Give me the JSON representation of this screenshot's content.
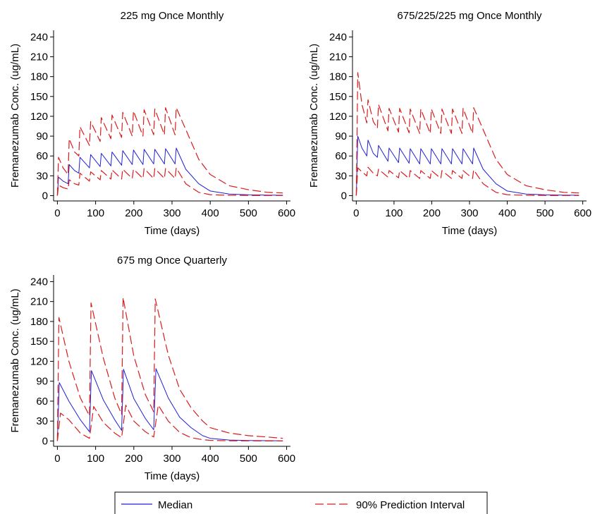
{
  "chart_data": [
    {
      "type": "line",
      "title": "225 mg Once Monthly",
      "xlabel": "Time (days)",
      "ylabel": "Fremanezumab Conc. (ug/mL)",
      "xlim": [
        -10,
        610
      ],
      "ylim": [
        -8,
        250
      ],
      "xticks": [
        0,
        100,
        200,
        300,
        400,
        500,
        600
      ],
      "yticks": [
        0,
        30,
        60,
        90,
        120,
        150,
        180,
        210,
        240
      ],
      "regimen": {
        "loading_dose": 225,
        "maintenance_dose": 225,
        "interval_days": 28,
        "doses": 12
      },
      "series": [
        {
          "name": "Median",
          "color": "#1f1fd6",
          "style": "solid",
          "x": [
            0,
            3,
            15,
            28,
            31,
            45,
            56,
            59,
            84,
            87,
            112,
            115,
            140,
            143,
            168,
            171,
            196,
            199,
            224,
            227,
            252,
            255,
            280,
            283,
            308,
            311,
            336,
            370,
            400,
            450,
            500,
            550,
            590
          ],
          "y": [
            0,
            28,
            22,
            18,
            47,
            38,
            34,
            58,
            42,
            62,
            44,
            64,
            45,
            66,
            46,
            68,
            47,
            69,
            47,
            70,
            48,
            70,
            48,
            71,
            48,
            72,
            40,
            18,
            7,
            2.5,
            1.3,
            0.8,
            0.6
          ]
        },
        {
          "name": "90% Prediction Interval",
          "color": "#d91c1c",
          "style": "dashed",
          "x": [
            0,
            3,
            15,
            28,
            31,
            45,
            56,
            59,
            84,
            87,
            112,
            115,
            140,
            143,
            168,
            171,
            196,
            199,
            224,
            227,
            252,
            255,
            280,
            283,
            308,
            311,
            336,
            370,
            400,
            450,
            500,
            550,
            590
          ],
          "y": [
            0,
            58,
            42,
            32,
            86,
            66,
            60,
            104,
            76,
            112,
            82,
            118,
            86,
            122,
            88,
            126,
            90,
            128,
            90,
            130,
            92,
            131,
            92,
            133,
            92,
            133,
            100,
            55,
            32,
            15,
            9,
            5,
            4
          ]
        },
        {
          "name": "90% Prediction Interval lower",
          "color": "#d91c1c",
          "style": "dashed",
          "x": [
            0,
            3,
            15,
            28,
            31,
            45,
            56,
            59,
            84,
            87,
            112,
            115,
            140,
            143,
            168,
            171,
            196,
            199,
            224,
            227,
            252,
            255,
            280,
            283,
            308,
            311,
            336,
            370,
            400,
            450,
            500,
            550,
            590
          ],
          "y": [
            0,
            16,
            12,
            10,
            24,
            18,
            16,
            34,
            22,
            36,
            24,
            38,
            25,
            39,
            25,
            40,
            26,
            40,
            26,
            41,
            26,
            41,
            26,
            41,
            26,
            42,
            18,
            5,
            1.5,
            0.5,
            0.3,
            0.2,
            0.2
          ]
        }
      ]
    },
    {
      "type": "line",
      "title": "675/225/225 mg Once Monthly",
      "xlabel": "Time (days)",
      "ylabel": "Fremanezumab Conc. (ug/mL)",
      "xlim": [
        -10,
        610
      ],
      "ylim": [
        -8,
        250
      ],
      "xticks": [
        0,
        100,
        200,
        300,
        400,
        500,
        600
      ],
      "yticks": [
        0,
        30,
        60,
        90,
        120,
        150,
        180,
        210,
        240
      ],
      "regimen": {
        "loading_dose": 675,
        "maintenance_dose": 225,
        "interval_days": 28,
        "doses": 12
      },
      "series": [
        {
          "name": "Median",
          "color": "#1f1fd6",
          "style": "solid",
          "x": [
            0,
            4,
            15,
            28,
            31,
            45,
            56,
            59,
            84,
            87,
            112,
            115,
            140,
            143,
            168,
            171,
            196,
            199,
            224,
            227,
            252,
            255,
            280,
            283,
            308,
            311,
            336,
            370,
            400,
            450,
            500,
            550,
            590
          ],
          "y": [
            0,
            90,
            72,
            60,
            84,
            64,
            58,
            76,
            52,
            72,
            50,
            72,
            49,
            71,
            48,
            71,
            48,
            71,
            48,
            71,
            48,
            71,
            48,
            71,
            48,
            72,
            40,
            18,
            7,
            2.5,
            1.3,
            0.8,
            0.6
          ]
        },
        {
          "name": "90% Prediction Interval",
          "color": "#d91c1c",
          "style": "dashed",
          "x": [
            0,
            4,
            15,
            28,
            31,
            45,
            56,
            59,
            84,
            87,
            112,
            115,
            140,
            143,
            168,
            171,
            196,
            199,
            224,
            227,
            252,
            255,
            280,
            283,
            308,
            311,
            336,
            370,
            400,
            450,
            500,
            550,
            590
          ],
          "y": [
            0,
            186,
            138,
            110,
            145,
            112,
            102,
            138,
            98,
            132,
            96,
            132,
            95,
            131,
            94,
            131,
            94,
            131,
            94,
            131,
            94,
            131,
            94,
            132,
            94,
            133,
            100,
            55,
            32,
            15,
            9,
            5,
            4
          ]
        },
        {
          "name": "90% Prediction Interval lower",
          "color": "#d91c1c",
          "style": "dashed",
          "x": [
            0,
            4,
            15,
            28,
            31,
            45,
            56,
            59,
            84,
            87,
            112,
            115,
            140,
            143,
            168,
            171,
            196,
            199,
            224,
            227,
            252,
            255,
            280,
            283,
            308,
            311,
            336,
            370,
            400,
            450,
            500,
            550,
            590
          ],
          "y": [
            0,
            42,
            36,
            30,
            43,
            34,
            30,
            40,
            28,
            38,
            27,
            38,
            26,
            38,
            26,
            38,
            26,
            38,
            26,
            38,
            26,
            38,
            26,
            38,
            26,
            39,
            18,
            5,
            1.5,
            0.5,
            0.3,
            0.2,
            0.2
          ]
        }
      ]
    },
    {
      "type": "line",
      "title": "675 mg Once Quarterly",
      "xlabel": "Time (days)",
      "ylabel": "Fremanezumab Conc. (ug/mL)",
      "xlim": [
        -10,
        610
      ],
      "ylim": [
        -8,
        250
      ],
      "xticks": [
        0,
        100,
        200,
        300,
        400,
        500,
        600
      ],
      "yticks": [
        0,
        30,
        60,
        90,
        120,
        150,
        180,
        210,
        240
      ],
      "regimen": {
        "loading_dose": 675,
        "maintenance_dose": 675,
        "interval_days": 84,
        "doses": 4
      },
      "series": [
        {
          "name": "Median",
          "color": "#1f1fd6",
          "style": "solid",
          "x": [
            0,
            5,
            30,
            60,
            84,
            89,
            120,
            150,
            168,
            173,
            200,
            230,
            252,
            258,
            290,
            320,
            350,
            380,
            400,
            450,
            500,
            550,
            590
          ],
          "y": [
            0,
            88,
            60,
            32,
            14,
            106,
            62,
            32,
            16,
            108,
            64,
            34,
            17,
            109,
            65,
            36,
            20,
            8,
            4,
            1.5,
            0.8,
            0.5,
            0.3
          ]
        },
        {
          "name": "90% Prediction Interval",
          "color": "#d91c1c",
          "style": "dashed",
          "x": [
            0,
            4,
            30,
            60,
            84,
            88,
            120,
            150,
            168,
            172,
            200,
            230,
            252,
            256,
            290,
            320,
            350,
            380,
            400,
            450,
            500,
            550,
            590
          ],
          "y": [
            0,
            186,
            120,
            65,
            38,
            208,
            125,
            65,
            40,
            216,
            128,
            70,
            44,
            214,
            130,
            78,
            50,
            30,
            20,
            12,
            8,
            6,
            4
          ]
        },
        {
          "name": "90% Prediction Interval lower",
          "color": "#d91c1c",
          "style": "dashed",
          "x": [
            0,
            8,
            30,
            60,
            84,
            95,
            120,
            150,
            168,
            179,
            200,
            230,
            252,
            264,
            290,
            320,
            350,
            380,
            400,
            450,
            500,
            550,
            590
          ],
          "y": [
            0,
            42,
            32,
            12,
            4,
            52,
            28,
            12,
            5,
            54,
            30,
            14,
            6,
            54,
            30,
            13,
            5,
            2,
            1,
            0.3,
            0.2,
            0.1,
            0.1
          ]
        }
      ]
    }
  ],
  "legend": {
    "items": [
      {
        "label": "Median",
        "color": "#1f1fd6",
        "style": "solid"
      },
      {
        "label": "90% Prediction Interval",
        "color": "#d91c1c",
        "style": "dashed"
      }
    ]
  }
}
